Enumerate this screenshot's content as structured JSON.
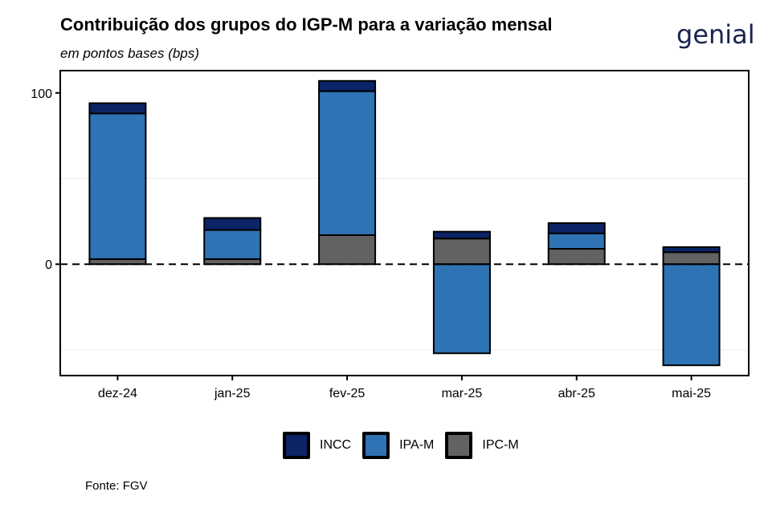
{
  "header": {
    "title": "Contribuição dos grupos do IGP-M para a variação mensal",
    "subtitle": "em pontos bases (bps)",
    "logo_text": "genial"
  },
  "footer": {
    "source": "Fonte: FGV"
  },
  "colors": {
    "INCC": "#0b2466",
    "IPA-M": "#2e74b5",
    "IPC-M": "#626262"
  },
  "chart_data": {
    "type": "bar",
    "stacked": true,
    "categories": [
      "dez-24",
      "jan-25",
      "fev-25",
      "mar-25",
      "abr-25",
      "mai-25"
    ],
    "series": [
      {
        "name": "IPC-M",
        "values": [
          3,
          3,
          17,
          15,
          9,
          7
        ]
      },
      {
        "name": "IPA-M",
        "values": [
          85,
          17,
          84,
          -52,
          9,
          -59
        ]
      },
      {
        "name": "INCC",
        "values": [
          6,
          7,
          6,
          4,
          6,
          3
        ]
      }
    ],
    "yticks": [
      0,
      100
    ],
    "ylim": [
      -65,
      113
    ],
    "zero_line": "dashed",
    "legend_position": "bottom",
    "xlabel": "",
    "ylabel": ""
  }
}
